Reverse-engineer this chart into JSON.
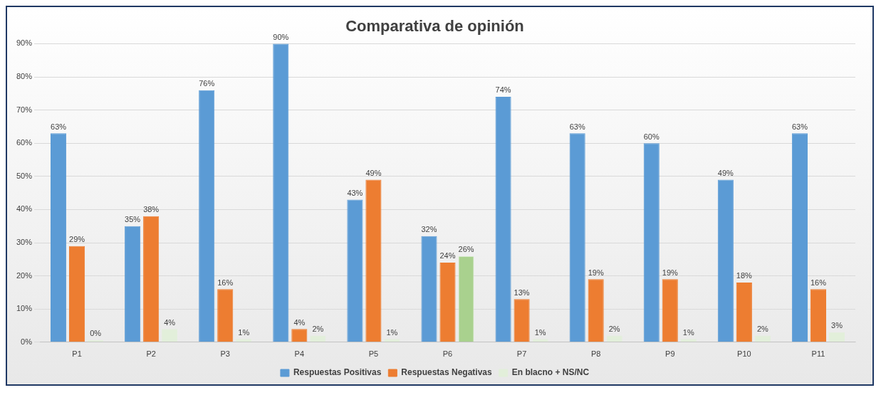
{
  "chart_data": {
    "type": "bar",
    "title": "Comparativa de opinión",
    "categories": [
      "P1",
      "P2",
      "P3",
      "P4",
      "P5",
      "P6",
      "P7",
      "P8",
      "P9",
      "P10",
      "P11"
    ],
    "series": [
      {
        "name": "Respuestas Positivas",
        "color": "#5b9bd5",
        "values": [
          63,
          35,
          76,
          90,
          43,
          32,
          74,
          63,
          60,
          49,
          63
        ],
        "value_labels": [
          "63%",
          "35%",
          "76%",
          "90%",
          "43%",
          "32%",
          "74%",
          "63%",
          "60%",
          "49%",
          "63%"
        ]
      },
      {
        "name": "Respuestas Negativas",
        "color": "#ed7d31",
        "values": [
          29,
          38,
          16,
          4,
          49,
          24,
          13,
          19,
          19,
          18,
          16
        ],
        "value_labels": [
          "29%",
          "38%",
          "16%",
          "4%",
          "49%",
          "24%",
          "13%",
          "19%",
          "19%",
          "18%",
          "16%"
        ]
      },
      {
        "name": "En blacno + NS/NC",
        "color": "#e2efda",
        "colors": [
          "#e2efda",
          "#e2efda",
          "#e2efda",
          "#e2efda",
          "#e2efda",
          "#a9d18e",
          "#e2efda",
          "#e2efda",
          "#e2efda",
          "#e2efda",
          "#e2efda"
        ],
        "values": [
          0,
          4,
          1,
          2,
          1,
          26,
          1,
          2,
          1,
          2,
          3
        ],
        "value_labels": [
          "0%",
          "4%",
          "1%",
          "2%",
          "1%",
          "26%",
          "1%",
          "2%",
          "1%",
          "2%",
          "3%"
        ]
      }
    ],
    "ylim": [
      0,
      90
    ],
    "yticks": [
      {
        "value": 0,
        "label": "0%"
      },
      {
        "value": 10,
        "label": "10%"
      },
      {
        "value": 20,
        "label": "20%"
      },
      {
        "value": 30,
        "label": "30%"
      },
      {
        "value": 40,
        "label": "40%"
      },
      {
        "value": 50,
        "label": "50%"
      },
      {
        "value": 60,
        "label": "60%"
      },
      {
        "value": 70,
        "label": "70%"
      },
      {
        "value": 80,
        "label": "80%"
      },
      {
        "value": 90,
        "label": "90%"
      }
    ],
    "grid": "y",
    "legend": "bottom"
  }
}
